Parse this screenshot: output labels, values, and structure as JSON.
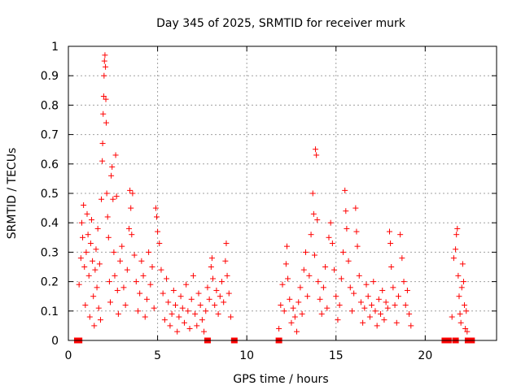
{
  "chart_data": {
    "type": "scatter",
    "title": "Day 345 of 2025, SRMTID for receiver murk",
    "xlabel": "GPS time / hours",
    "ylabel": "SRMTID / TECUs",
    "xlim": [
      0,
      24
    ],
    "ylim": [
      0,
      1
    ],
    "xticks": [
      0,
      5,
      10,
      15,
      20
    ],
    "xtick_labels": [
      "0",
      "5",
      "10",
      "15",
      "20"
    ],
    "yticks": [
      0,
      0.1,
      0.2,
      0.3,
      0.4,
      0.5,
      0.6,
      0.7,
      0.8,
      0.9,
      1
    ],
    "ytick_labels": [
      "0",
      "0.1",
      "0.2",
      "0.3",
      "0.4",
      "0.5",
      "0.6",
      "0.7",
      "0.8",
      "0.9",
      "1"
    ],
    "grid": true,
    "series": [
      {
        "name": "SRMTID",
        "marker": "+",
        "color": "#ff0000",
        "points": [
          [
            0.6,
            0.19
          ],
          [
            0.7,
            0.28
          ],
          [
            0.75,
            0.4
          ],
          [
            0.8,
            0.35
          ],
          [
            0.85,
            0.46
          ],
          [
            0.9,
            0.25
          ],
          [
            0.95,
            0.12
          ],
          [
            1.0,
            0.3
          ],
          [
            1.05,
            0.43
          ],
          [
            1.1,
            0.36
          ],
          [
            1.15,
            0.22
          ],
          [
            1.2,
            0.08
          ],
          [
            1.25,
            0.33
          ],
          [
            1.3,
            0.41
          ],
          [
            1.35,
            0.27
          ],
          [
            1.4,
            0.15
          ],
          [
            1.45,
            0.05
          ],
          [
            1.5,
            0.24
          ],
          [
            1.55,
            0.31
          ],
          [
            1.6,
            0.18
          ],
          [
            1.65,
            0.38
          ],
          [
            1.7,
            0.11
          ],
          [
            1.75,
            0.26
          ],
          [
            1.8,
            0.07
          ],
          [
            1.85,
            0.48
          ],
          [
            1.9,
            0.61
          ],
          [
            1.92,
            0.67
          ],
          [
            1.95,
            0.77
          ],
          [
            1.98,
            0.83
          ],
          [
            2.0,
            0.9
          ],
          [
            2.02,
            0.95
          ],
          [
            2.05,
            0.97
          ],
          [
            2.08,
            0.93
          ],
          [
            2.1,
            0.82
          ],
          [
            2.12,
            0.74
          ],
          [
            2.15,
            0.5
          ],
          [
            2.2,
            0.42
          ],
          [
            2.25,
            0.35
          ],
          [
            2.3,
            0.2
          ],
          [
            2.35,
            0.13
          ],
          [
            2.4,
            0.56
          ],
          [
            2.45,
            0.59
          ],
          [
            2.5,
            0.48
          ],
          [
            2.55,
            0.3
          ],
          [
            2.6,
            0.22
          ],
          [
            2.65,
            0.63
          ],
          [
            2.7,
            0.49
          ],
          [
            2.75,
            0.17
          ],
          [
            2.8,
            0.09
          ],
          [
            2.9,
            0.27
          ],
          [
            3.0,
            0.32
          ],
          [
            3.1,
            0.18
          ],
          [
            3.2,
            0.12
          ],
          [
            3.3,
            0.24
          ],
          [
            3.4,
            0.38
          ],
          [
            3.45,
            0.51
          ],
          [
            3.5,
            0.45
          ],
          [
            3.55,
            0.36
          ],
          [
            3.6,
            0.5
          ],
          [
            3.7,
            0.29
          ],
          [
            3.8,
            0.2
          ],
          [
            3.9,
            0.1
          ],
          [
            4.0,
            0.16
          ],
          [
            4.1,
            0.27
          ],
          [
            4.2,
            0.22
          ],
          [
            4.3,
            0.08
          ],
          [
            4.4,
            0.14
          ],
          [
            4.5,
            0.3
          ],
          [
            4.6,
            0.19
          ],
          [
            4.7,
            0.25
          ],
          [
            4.8,
            0.11
          ],
          [
            4.9,
            0.45
          ],
          [
            4.95,
            0.42
          ],
          [
            5.0,
            0.37
          ],
          [
            5.1,
            0.33
          ],
          [
            5.2,
            0.24
          ],
          [
            5.3,
            0.16
          ],
          [
            5.4,
            0.07
          ],
          [
            5.5,
            0.21
          ],
          [
            5.6,
            0.13
          ],
          [
            5.7,
            0.05
          ],
          [
            5.8,
            0.09
          ],
          [
            5.9,
            0.17
          ],
          [
            6.0,
            0.12
          ],
          [
            6.1,
            0.03
          ],
          [
            6.2,
            0.08
          ],
          [
            6.3,
            0.15
          ],
          [
            6.4,
            0.11
          ],
          [
            6.5,
            0.06
          ],
          [
            6.6,
            0.19
          ],
          [
            6.7,
            0.1
          ],
          [
            6.8,
            0.04
          ],
          [
            6.9,
            0.14
          ],
          [
            7.0,
            0.22
          ],
          [
            7.1,
            0.09
          ],
          [
            7.2,
            0.05
          ],
          [
            7.3,
            0.16
          ],
          [
            7.4,
            0.12
          ],
          [
            7.5,
            0.07
          ],
          [
            7.6,
            0.03
          ],
          [
            7.7,
            0.1
          ],
          [
            7.8,
            0.18
          ],
          [
            7.9,
            0.14
          ],
          [
            8.0,
            0.25
          ],
          [
            8.05,
            0.28
          ],
          [
            8.1,
            0.21
          ],
          [
            8.2,
            0.12
          ],
          [
            8.3,
            0.17
          ],
          [
            8.4,
            0.09
          ],
          [
            8.5,
            0.15
          ],
          [
            8.6,
            0.2
          ],
          [
            8.7,
            0.13
          ],
          [
            8.8,
            0.27
          ],
          [
            8.85,
            0.33
          ],
          [
            8.9,
            0.22
          ],
          [
            9.0,
            0.16
          ],
          [
            9.1,
            0.08
          ],
          [
            11.8,
            0.04
          ],
          [
            11.9,
            0.12
          ],
          [
            12.0,
            0.19
          ],
          [
            12.1,
            0.1
          ],
          [
            12.2,
            0.26
          ],
          [
            12.25,
            0.32
          ],
          [
            12.3,
            0.21
          ],
          [
            12.4,
            0.14
          ],
          [
            12.5,
            0.06
          ],
          [
            12.6,
            0.11
          ],
          [
            12.7,
            0.08
          ],
          [
            12.8,
            0.03
          ],
          [
            12.9,
            0.13
          ],
          [
            13.0,
            0.18
          ],
          [
            13.1,
            0.09
          ],
          [
            13.2,
            0.24
          ],
          [
            13.3,
            0.3
          ],
          [
            13.4,
            0.15
          ],
          [
            13.5,
            0.22
          ],
          [
            13.6,
            0.36
          ],
          [
            13.7,
            0.5
          ],
          [
            13.75,
            0.43
          ],
          [
            13.8,
            0.29
          ],
          [
            13.85,
            0.65
          ],
          [
            13.9,
            0.63
          ],
          [
            13.95,
            0.41
          ],
          [
            14.0,
            0.2
          ],
          [
            14.1,
            0.14
          ],
          [
            14.2,
            0.09
          ],
          [
            14.3,
            0.18
          ],
          [
            14.4,
            0.25
          ],
          [
            14.5,
            0.11
          ],
          [
            14.6,
            0.35
          ],
          [
            14.7,
            0.4
          ],
          [
            14.8,
            0.33
          ],
          [
            14.9,
            0.24
          ],
          [
            15.0,
            0.15
          ],
          [
            15.1,
            0.07
          ],
          [
            15.2,
            0.12
          ],
          [
            15.3,
            0.21
          ],
          [
            15.4,
            0.3
          ],
          [
            15.5,
            0.51
          ],
          [
            15.55,
            0.44
          ],
          [
            15.6,
            0.38
          ],
          [
            15.7,
            0.27
          ],
          [
            15.8,
            0.18
          ],
          [
            15.9,
            0.1
          ],
          [
            16.0,
            0.16
          ],
          [
            16.1,
            0.45
          ],
          [
            16.15,
            0.37
          ],
          [
            16.2,
            0.32
          ],
          [
            16.3,
            0.22
          ],
          [
            16.4,
            0.13
          ],
          [
            16.5,
            0.06
          ],
          [
            16.6,
            0.11
          ],
          [
            16.7,
            0.19
          ],
          [
            16.8,
            0.15
          ],
          [
            16.9,
            0.08
          ],
          [
            17.0,
            0.12
          ],
          [
            17.1,
            0.2
          ],
          [
            17.2,
            0.1
          ],
          [
            17.3,
            0.05
          ],
          [
            17.4,
            0.14
          ],
          [
            17.5,
            0.09
          ],
          [
            17.6,
            0.17
          ],
          [
            17.7,
            0.07
          ],
          [
            17.8,
            0.13
          ],
          [
            17.9,
            0.11
          ],
          [
            18.0,
            0.37
          ],
          [
            18.05,
            0.33
          ],
          [
            18.1,
            0.25
          ],
          [
            18.2,
            0.18
          ],
          [
            18.3,
            0.12
          ],
          [
            18.4,
            0.06
          ],
          [
            18.5,
            0.15
          ],
          [
            18.6,
            0.36
          ],
          [
            18.7,
            0.28
          ],
          [
            18.8,
            0.2
          ],
          [
            18.9,
            0.12
          ],
          [
            19.0,
            0.17
          ],
          [
            19.1,
            0.09
          ],
          [
            19.2,
            0.05
          ],
          [
            21.5,
            0.08
          ],
          [
            21.6,
            0.28
          ],
          [
            21.7,
            0.31
          ],
          [
            21.75,
            0.36
          ],
          [
            21.8,
            0.38
          ],
          [
            21.85,
            0.22
          ],
          [
            21.9,
            0.15
          ],
          [
            21.95,
            0.09
          ],
          [
            22.0,
            0.06
          ],
          [
            22.05,
            0.18
          ],
          [
            22.1,
            0.26
          ],
          [
            22.15,
            0.2
          ],
          [
            22.2,
            0.12
          ],
          [
            22.25,
            0.04
          ],
          [
            22.3,
            0.1
          ],
          [
            22.35,
            0.03
          ]
        ]
      }
    ],
    "zero_markers": [
      0.5,
      0.6,
      7.8,
      9.3,
      11.8,
      21.1,
      21.3,
      21.7,
      22.4,
      22.6
    ]
  }
}
